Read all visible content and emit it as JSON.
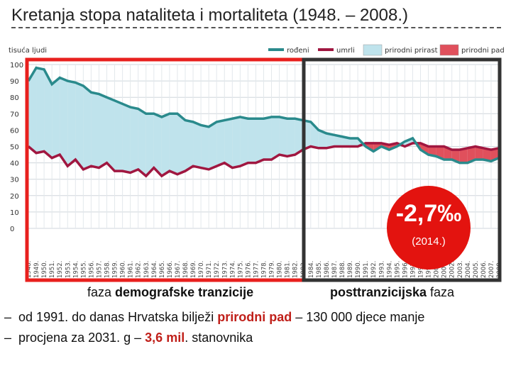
{
  "title": "Kretanja stopa nataliteta i mortaliteta (1948. – 2008.)",
  "colors": {
    "born": "#2a8a8c",
    "died": "#a01740",
    "increase_fill": "#bfe3ec",
    "decrease_fill": "#e0505c",
    "phase1_border": "#e8201e",
    "phase2_border": "#333333",
    "badge": "#e3130f"
  },
  "badge": {
    "value": "-2,7‰",
    "year": "(2014.)"
  },
  "phases": {
    "first_prefix": "faza ",
    "first_bold": "demografske tranzicije",
    "second_bold": "posttranzicijska",
    "second_suffix": " faza"
  },
  "bullets": [
    {
      "dash": "–",
      "pre": "od 1991. do danas Hrvatska bilježi ",
      "hl": "prirodni pad",
      "post": " – 130 000 djece manje"
    },
    {
      "dash": "–",
      "pre": "procjena za 2031. g – ",
      "hl": "3,6 mil",
      "post": ". stanovnika"
    }
  ],
  "chart_data": {
    "type": "area",
    "ylabel": "tisuća ljudi",
    "ylim": [
      0,
      100
    ],
    "yticks": [
      0,
      10,
      20,
      30,
      40,
      50,
      60,
      70,
      80,
      90,
      100
    ],
    "legend": [
      "rođeni",
      "umrli",
      "prirodni prirast",
      "prirodni pad"
    ],
    "legend_position": "top-right",
    "grid": true,
    "x": [
      1948,
      1949,
      1950,
      1951,
      1952,
      1953,
      1954,
      1955,
      1956,
      1957,
      1958,
      1959,
      1960,
      1961,
      1962,
      1963,
      1964,
      1965,
      1966,
      1967,
      1968,
      1969,
      1970,
      1971,
      1972,
      1973,
      1974,
      1975,
      1976,
      1977,
      1978,
      1979,
      1980,
      1981,
      1982,
      1983,
      1984,
      1985,
      1986,
      1987,
      1988,
      1989,
      1990,
      1991,
      1992,
      1993,
      1994,
      1995,
      1996,
      1997,
      1998,
      1999,
      2000,
      2001,
      2002,
      2003,
      2004,
      2005,
      2006,
      2007,
      2008
    ],
    "x_tick_labels": [
      "1948.",
      "1949.",
      "1950.",
      "1951.",
      "1952.",
      "1953.",
      "1954.",
      "1955.",
      "1956.",
      "1957.",
      "1958.",
      "1959.",
      "1960.",
      "1961.",
      "1962.",
      "1963.",
      "1964.",
      "1965.",
      "1966.",
      "1967.",
      "1968.",
      "1969.",
      "1970.",
      "1971.",
      "1972.",
      "1973.",
      "1974.",
      "1975.",
      "1976.",
      "1977.",
      "1978.",
      "1979.",
      "1980.",
      "1981.",
      "1982.",
      "1983.",
      "1984.",
      "1985.",
      "1986.",
      "1987.",
      "1988.",
      "1989.",
      "1990.",
      "1991.",
      "1992.",
      "1993.",
      "1994.",
      "1995.",
      "1996.",
      "1997.",
      "1998.",
      "1999.",
      "2000.",
      "2001.",
      "2002.",
      "2003.",
      "2004.",
      "2005.",
      "2006.",
      "2007.",
      "2008."
    ],
    "series": [
      {
        "name": "rođeni",
        "values": [
          90,
          98,
          97,
          88,
          92,
          90,
          89,
          87,
          83,
          82,
          80,
          78,
          76,
          74,
          73,
          70,
          70,
          68,
          70,
          70,
          66,
          65,
          63,
          62,
          65,
          66,
          67,
          68,
          67,
          67,
          67,
          68,
          68,
          67,
          67,
          66,
          65,
          60,
          58,
          57,
          56,
          55,
          55,
          50,
          47,
          50,
          48,
          50,
          53,
          55,
          48,
          45,
          44,
          42,
          42,
          40,
          40,
          42,
          42,
          41,
          43
        ]
      },
      {
        "name": "umrli",
        "values": [
          50,
          46,
          47,
          43,
          45,
          38,
          42,
          36,
          38,
          37,
          40,
          35,
          35,
          34,
          36,
          32,
          37,
          32,
          35,
          33,
          35,
          38,
          37,
          36,
          38,
          40,
          37,
          38,
          40,
          40,
          42,
          42,
          45,
          44,
          45,
          48,
          50,
          49,
          49,
          50,
          50,
          50,
          50,
          52,
          52,
          52,
          51,
          52,
          50,
          52,
          52,
          50,
          50,
          50,
          48,
          48,
          49,
          50,
          49,
          48,
          49
        ]
      }
    ]
  }
}
